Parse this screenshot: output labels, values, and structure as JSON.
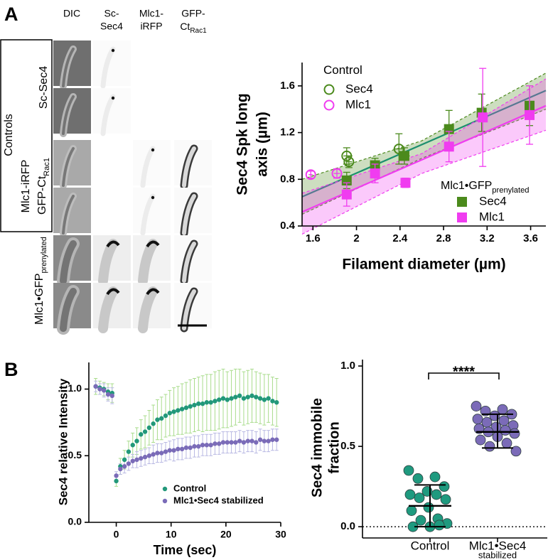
{
  "panel_labels": [
    "A",
    "B"
  ],
  "image_panel": {
    "column_headers": [
      {
        "lines": [
          "DIC"
        ]
      },
      {
        "lines": [
          "Sc-",
          "Sec4"
        ]
      },
      {
        "lines": [
          "Mlc1-",
          "iRFP"
        ]
      },
      {
        "lines": [
          "GFP-",
          "Ct"
        ],
        "sub": "Rac1"
      }
    ],
    "group_label": "Controls",
    "row_labels": [
      {
        "text": "Sc-Sec4"
      },
      {
        "text": "Mlc1-iRFP"
      },
      {
        "text": "GFP-Ct",
        "sub": "Rac1"
      },
      {
        "text": "Mlc1•GFP",
        "sub": "prenylated"
      }
    ]
  },
  "chart_data": [
    {
      "type": "scatter",
      "xlabel": "Filament diameter (µm)",
      "ylabel": [
        "Sec4 Spk long",
        "axis (µm)"
      ],
      "xlim": [
        1.5,
        3.74
      ],
      "xticks": [
        1.6,
        2.0,
        2.4,
        2.8,
        3.2,
        3.6
      ],
      "ylim": [
        0.4,
        1.8
      ],
      "yticks": [
        0.4,
        0.8,
        1.2,
        1.6
      ],
      "legend_groups": [
        {
          "title": "Control",
          "marker": "open-circle",
          "series": [
            {
              "name": "Sec4",
              "color": "#4b8a1c",
              "x": [
                1.91,
                1.93,
                2.39
              ],
              "values": [
                1.0,
                0.95,
                1.06
              ],
              "xerr": [
                0.03,
                0.03,
                0.05
              ],
              "yerr": [
                0.07,
                0.05,
                0.13
              ]
            },
            {
              "name": "Mlc1",
              "color": "#f03cf0",
              "x": [
                1.58,
                1.82
              ],
              "values": [
                0.84,
                0.85
              ],
              "xerr": [
                0.02,
                0.03
              ],
              "yerr": [
                0.03,
                0.04
              ]
            }
          ]
        },
        {
          "title": "Mlc1•GFP",
          "title_sub": "prenylated",
          "marker": "square",
          "series": [
            {
              "name": "Sec4",
              "color": "#4b8a1c",
              "x": [
                1.91,
                2.17,
                2.44,
                2.85,
                3.15,
                3.59
              ],
              "values": [
                0.79,
                0.92,
                1.0,
                1.23,
                1.37,
                1.43
              ],
              "xerr": [
                0.02,
                0.03,
                0.05,
                0.03,
                0.04,
                0.03
              ],
              "yerr": [
                0.07,
                0.06,
                0.07,
                0.16,
                0.16,
                0.17
              ],
              "fit_color": "#1d8f6e",
              "fit": {
                "x": [
                  1.5,
                  3.74
                ],
                "values": [
                  0.65,
                  1.56
                ]
              },
              "band": {
                "x": [
                  1.5,
                  2.6,
                  3.74
                ],
                "upper": [
                  0.8,
                  1.13,
                  1.71
                ],
                "lower": [
                  0.5,
                  0.98,
                  1.4
                ]
              }
            },
            {
              "name": "Mlc1",
              "color": "#f03cf0",
              "x": [
                1.91,
                2.17,
                2.45,
                2.85,
                3.16,
                3.59
              ],
              "values": [
                0.67,
                0.85,
                0.77,
                1.08,
                1.33,
                1.35
              ],
              "xerr": [
                0.02,
                0.03,
                0.03,
                0.03,
                0.05,
                0.03
              ],
              "yerr": [
                0.1,
                0.08,
                0.04,
                0.13,
                0.42,
                0.25
              ],
              "fit_color": "#f03cf0",
              "fit": {
                "x": [
                  1.5,
                  3.74
                ],
                "values": [
                  0.52,
                  1.43
                ]
              },
              "band": {
                "x": [
                  1.5,
                  2.6,
                  3.74
                ],
                "upper": [
                  0.68,
                  1.02,
                  1.66
                ],
                "lower": [
                  0.33,
                  0.85,
                  1.22
                ]
              }
            }
          ]
        }
      ]
    },
    {
      "type": "errorbar",
      "xlabel": "Time (sec)",
      "ylabel": "Sec4 relative Intensity",
      "xlim": [
        -5,
        30
      ],
      "xticks": [
        0,
        10,
        20,
        30
      ],
      "ylim": [
        0,
        1.2
      ],
      "yticks": [
        {
          "value": 0,
          "label": "0.0"
        },
        0.5,
        {
          "value": 1,
          "label": "1.0"
        }
      ],
      "x": [
        -3.75,
        -3,
        -2.25,
        -1.5,
        -0.75,
        0,
        0.75,
        1.5,
        2.25,
        3,
        3.75,
        4.5,
        5.25,
        6,
        6.75,
        7.5,
        8.25,
        9,
        9.75,
        10.5,
        11.25,
        12,
        12.75,
        13.5,
        14.25,
        15,
        15.75,
        16.5,
        17.25,
        18,
        18.75,
        19.5,
        20.25,
        21,
        21.75,
        22.5,
        23.25,
        24,
        24.75,
        25.5,
        26.25,
        27,
        27.75,
        28.5,
        29.25
      ],
      "series": [
        {
          "name": "Control",
          "color": "#22987a",
          "error_color": "#a9dc8c",
          "values": [
            1.02,
            1.01,
            1.0,
            0.98,
            0.97,
            0.31,
            0.42,
            0.47,
            0.53,
            0.58,
            0.61,
            0.66,
            0.68,
            0.71,
            0.74,
            0.77,
            0.78,
            0.8,
            0.82,
            0.83,
            0.84,
            0.85,
            0.86,
            0.87,
            0.88,
            0.89,
            0.89,
            0.9,
            0.9,
            0.91,
            0.92,
            0.93,
            0.92,
            0.93,
            0.94,
            0.95,
            0.93,
            0.94,
            0.95,
            0.94,
            0.93,
            0.92,
            0.93,
            0.91,
            0.9
          ],
          "errors": [
            0.06,
            0.05,
            0.05,
            0.06,
            0.07,
            0.04,
            0.06,
            0.07,
            0.08,
            0.09,
            0.1,
            0.11,
            0.12,
            0.13,
            0.14,
            0.15,
            0.16,
            0.16,
            0.17,
            0.18,
            0.18,
            0.19,
            0.19,
            0.2,
            0.2,
            0.2,
            0.21,
            0.21,
            0.21,
            0.22,
            0.22,
            0.22,
            0.21,
            0.21,
            0.21,
            0.2,
            0.2,
            0.2,
            0.2,
            0.19,
            0.19,
            0.19,
            0.18,
            0.18,
            0.18
          ]
        },
        {
          "name": "Mlc1•Sec4 stabilized",
          "color": "#7a6bb8",
          "error_color": "#b9b9e3",
          "values": [
            1.02,
            1.0,
            0.99,
            0.96,
            0.95,
            0.35,
            0.4,
            0.42,
            0.44,
            0.46,
            0.47,
            0.48,
            0.49,
            0.5,
            0.51,
            0.52,
            0.52,
            0.53,
            0.54,
            0.54,
            0.55,
            0.55,
            0.56,
            0.56,
            0.57,
            0.57,
            0.58,
            0.58,
            0.58,
            0.59,
            0.59,
            0.6,
            0.6,
            0.6,
            0.6,
            0.61,
            0.6,
            0.61,
            0.61,
            0.6,
            0.62,
            0.61,
            0.61,
            0.62,
            0.62
          ],
          "errors": [
            0.04,
            0.04,
            0.05,
            0.05,
            0.06,
            0.03,
            0.04,
            0.05,
            0.05,
            0.05,
            0.06,
            0.06,
            0.06,
            0.06,
            0.07,
            0.07,
            0.07,
            0.07,
            0.07,
            0.08,
            0.08,
            0.08,
            0.08,
            0.08,
            0.08,
            0.08,
            0.08,
            0.08,
            0.08,
            0.08,
            0.08,
            0.08,
            0.08,
            0.08,
            0.08,
            0.08,
            0.08,
            0.08,
            0.08,
            0.08,
            0.08,
            0.08,
            0.08,
            0.08,
            0.08
          ]
        }
      ]
    },
    {
      "type": "dot",
      "ylabel": [
        "Sec4 immobile",
        "fraction"
      ],
      "categories": [
        "Control",
        "Mlc1•Sec4"
      ],
      "annotation": "stabilized",
      "ylim": [
        -0.07,
        1.04
      ],
      "yticks": [
        {
          "value": 0,
          "label": "0.0"
        },
        0.5,
        {
          "value": 1,
          "label": "1.0"
        }
      ],
      "reference_line": 0,
      "significance": "****",
      "colors": [
        "#1f9a7f",
        "#7b6bb8"
      ],
      "points": [
        [
          0.35,
          0.31,
          0.3,
          0.25,
          0.22,
          0.2,
          0.2,
          0.18,
          0.17,
          0.12,
          0.1,
          0.05,
          0.04,
          0.02,
          0.0,
          0.0,
          0.01
        ],
        [
          0.75,
          0.73,
          0.72,
          0.7,
          0.69,
          0.67,
          0.66,
          0.65,
          0.63,
          0.62,
          0.61,
          0.6,
          0.59,
          0.58,
          0.56,
          0.54,
          0.52,
          0.5,
          0.47
        ]
      ],
      "center": [
        0.13,
        0.59
      ],
      "lower": [
        0.0,
        0.49
      ],
      "upper": [
        0.26,
        0.7
      ]
    }
  ]
}
